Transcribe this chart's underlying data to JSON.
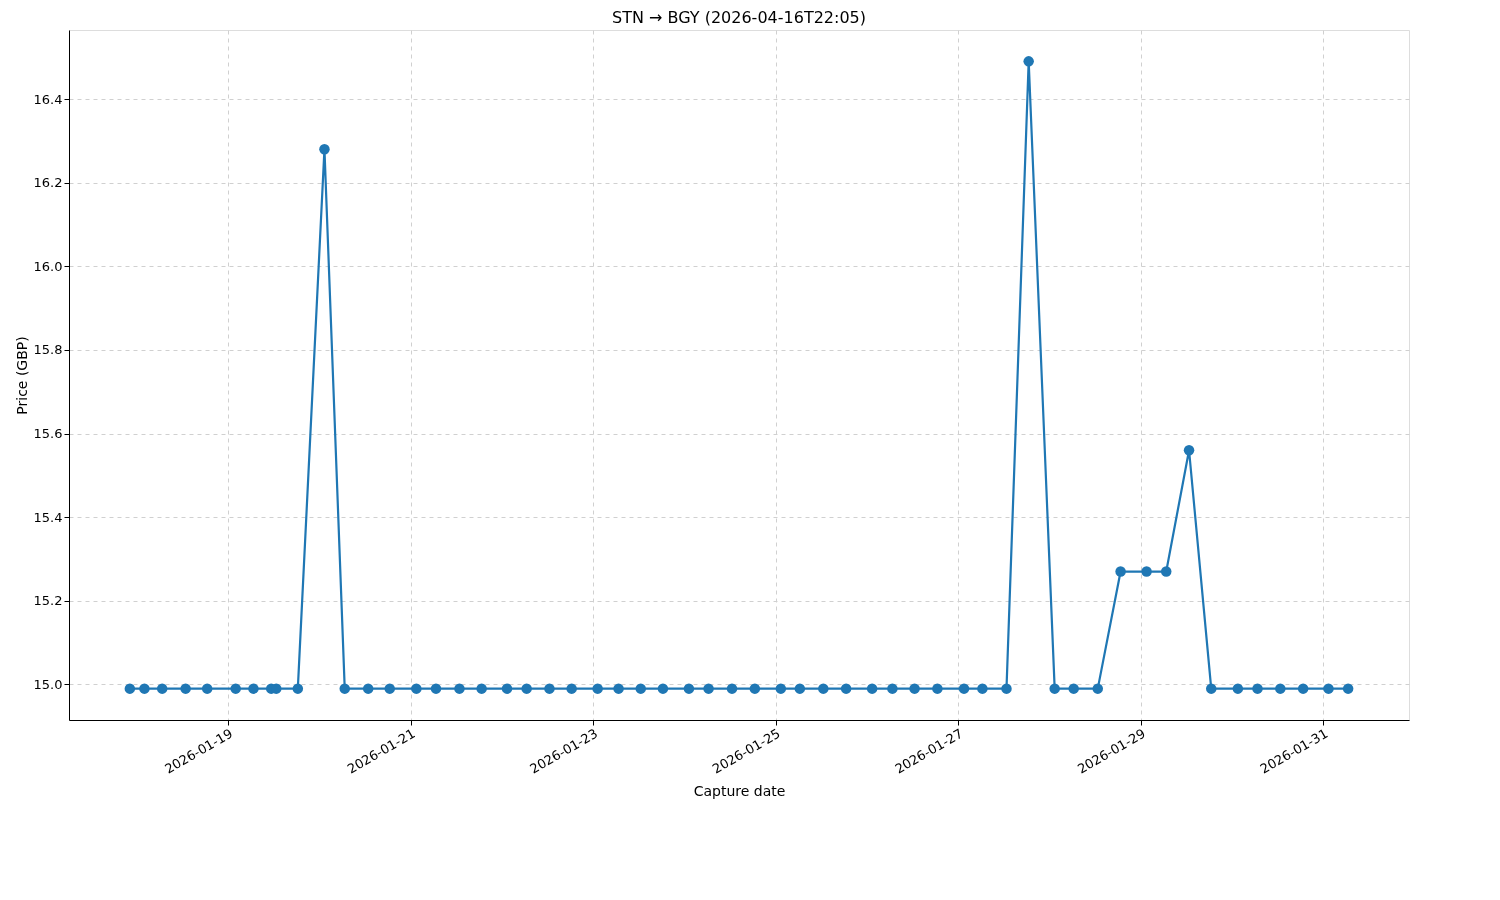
{
  "chart_data": {
    "type": "line",
    "title": "STN → BGY (2026-04-16T22:05)",
    "xlabel": "Capture date",
    "ylabel": "Price (GBP)",
    "x": [
      "2026-01-17T22:10",
      "2026-01-18T02:00",
      "2026-01-18T06:40",
      "2026-01-18T12:50",
      "2026-01-18T18:30",
      "2026-01-19T02:00",
      "2026-01-19T06:40",
      "2026-01-19T11:20",
      "2026-01-19T12:40",
      "2026-01-19T18:20",
      "2026-01-20T01:20",
      "2026-01-20T06:40",
      "2026-01-20T12:50",
      "2026-01-20T18:30",
      "2026-01-21T01:30",
      "2026-01-21T06:40",
      "2026-01-21T12:50",
      "2026-01-21T18:40",
      "2026-01-22T01:20",
      "2026-01-22T06:30",
      "2026-01-22T12:30",
      "2026-01-22T18:20",
      "2026-01-23T01:10",
      "2026-01-23T06:40",
      "2026-01-23T12:30",
      "2026-01-23T18:20",
      "2026-01-24T01:10",
      "2026-01-24T06:20",
      "2026-01-24T12:30",
      "2026-01-24T18:30",
      "2026-01-25T01:20",
      "2026-01-25T06:20",
      "2026-01-25T12:30",
      "2026-01-25T18:30",
      "2026-01-26T01:20",
      "2026-01-26T06:40",
      "2026-01-26T12:30",
      "2026-01-26T18:30",
      "2026-01-27T01:30",
      "2026-01-27T06:20",
      "2026-01-27T12:40",
      "2026-01-27T18:30",
      "2026-01-28T01:20",
      "2026-01-28T06:20",
      "2026-01-28T12:40",
      "2026-01-28T18:40",
      "2026-01-29T01:30",
      "2026-01-29T06:40",
      "2026-01-29T12:40",
      "2026-01-29T18:30",
      "2026-01-30T01:30",
      "2026-01-30T06:40",
      "2026-01-30T12:40",
      "2026-01-30T18:40",
      "2026-01-31T01:20",
      "2026-01-31T06:30"
    ],
    "series": [
      {
        "color": "#1f77b4",
        "values": [
          14.99,
          14.99,
          14.99,
          14.99,
          14.99,
          14.99,
          14.99,
          14.99,
          14.99,
          14.99,
          16.28,
          14.99,
          14.99,
          14.99,
          14.99,
          14.99,
          14.99,
          14.99,
          14.99,
          14.99,
          14.99,
          14.99,
          14.99,
          14.99,
          14.99,
          14.99,
          14.99,
          14.99,
          14.99,
          14.99,
          14.99,
          14.99,
          14.99,
          14.99,
          14.99,
          14.99,
          14.99,
          14.99,
          14.99,
          14.99,
          14.99,
          16.49,
          14.99,
          14.99,
          14.99,
          15.27,
          15.27,
          15.27,
          15.56,
          14.99,
          14.99,
          14.99,
          14.99,
          14.99,
          14.99,
          14.99
        ]
      }
    ],
    "xlim": [
      "2026-01-17T06:10",
      "2026-01-31T22:30"
    ],
    "ylim": [
      14.915,
      16.565
    ],
    "xticks": [
      "2026-01-19",
      "2026-01-21",
      "2026-01-23",
      "2026-01-25",
      "2026-01-27",
      "2026-01-29",
      "2026-01-31"
    ],
    "yticks": [
      {
        "value": 15,
        "label": "15.0"
      },
      15.2,
      15.4,
      15.6,
      15.8,
      {
        "value": 16,
        "label": "16.0"
      },
      16.2,
      16.4
    ],
    "grid": true,
    "marker": "circle",
    "line_style": "solid"
  }
}
